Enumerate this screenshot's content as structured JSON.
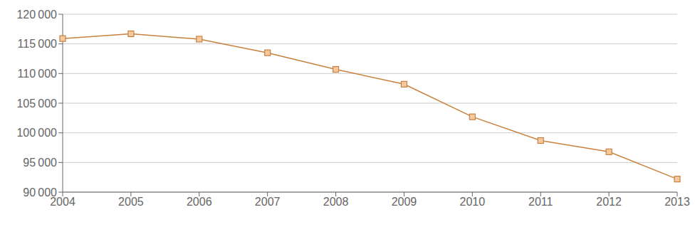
{
  "chart_data": {
    "type": "line",
    "categories": [
      "2004",
      "2005",
      "2006",
      "2007",
      "2008",
      "2009",
      "2010",
      "2011",
      "2012",
      "2013"
    ],
    "values": [
      115900,
      116700,
      115800,
      113500,
      110700,
      108200,
      102700,
      98700,
      96800,
      92200
    ],
    "color": "#C8813C",
    "marker": "square",
    "ylim": [
      90000,
      120000
    ],
    "yticks": [
      {
        "value": 90000,
        "label": "90 000"
      },
      {
        "value": 95000,
        "label": "95 000"
      },
      {
        "value": 100000,
        "label": "100 000"
      },
      {
        "value": 105000,
        "label": "105 000"
      },
      {
        "value": 110000,
        "label": "110 000"
      },
      {
        "value": 115000,
        "label": "115 000"
      },
      {
        "value": 120000,
        "label": "120 000"
      }
    ],
    "grid": true
  }
}
